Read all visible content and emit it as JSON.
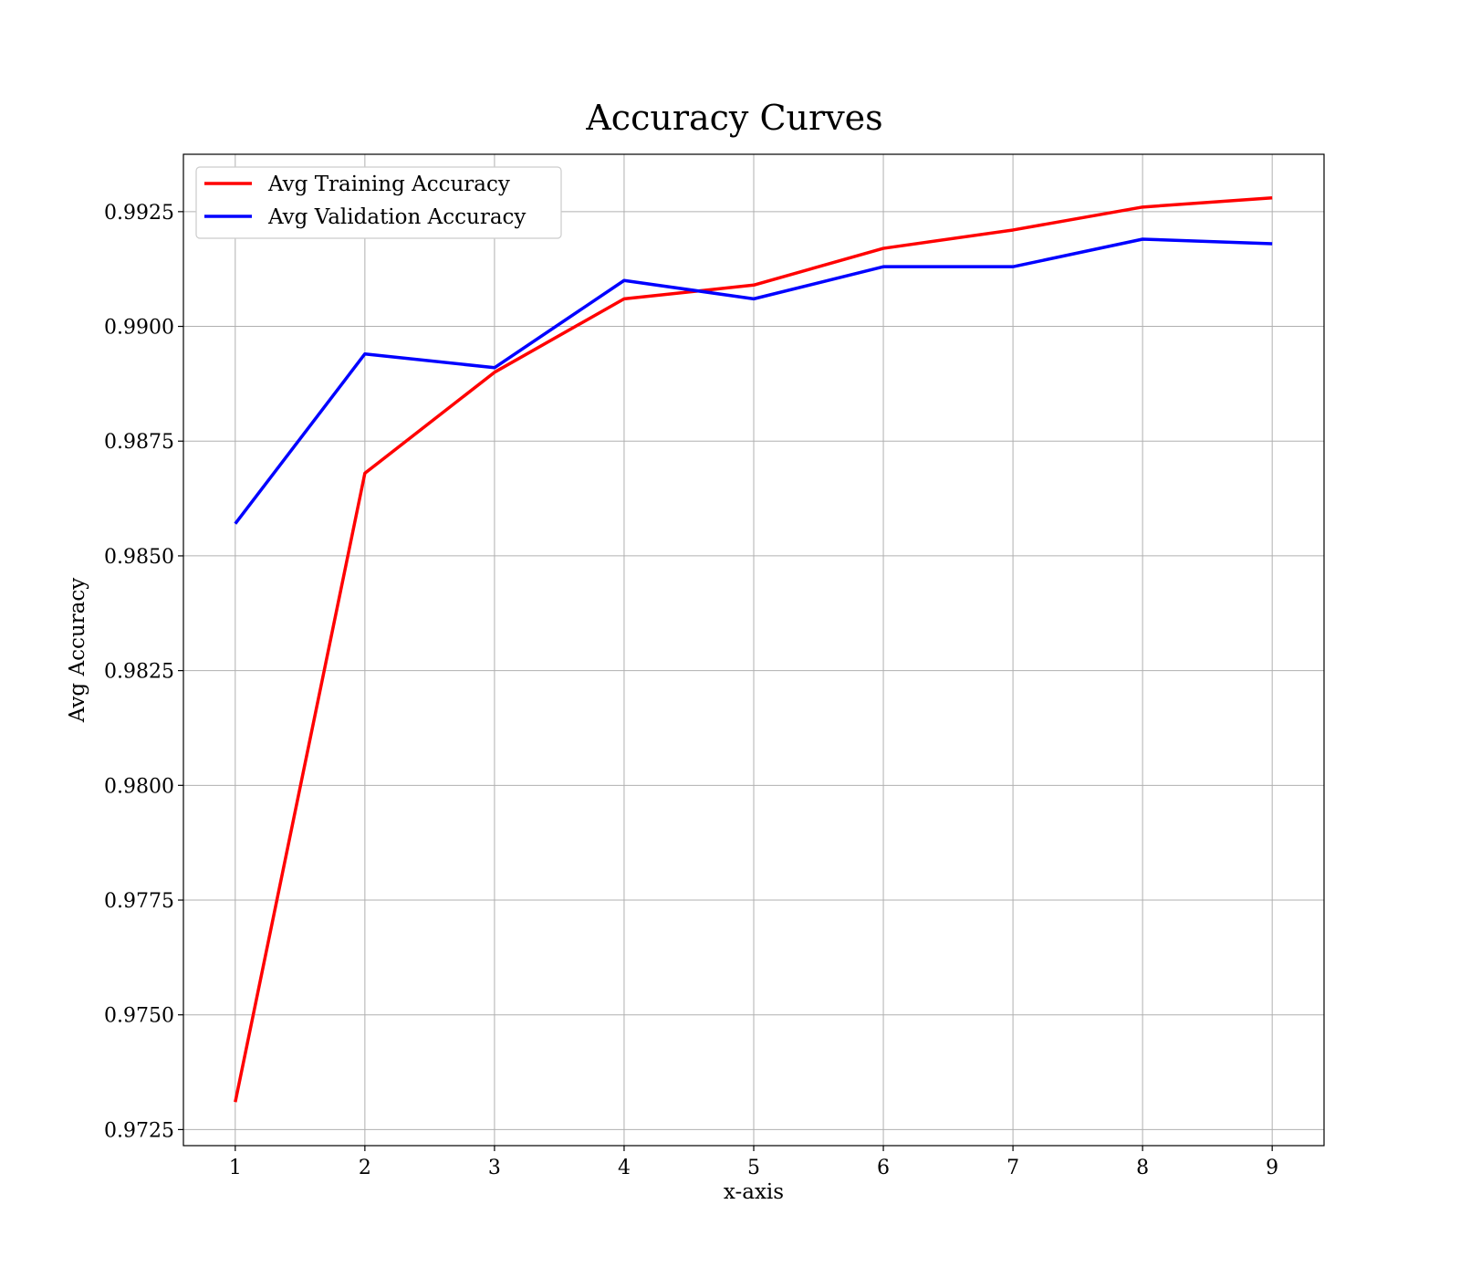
{
  "chart_data": {
    "type": "line",
    "title": "Accuracy Curves",
    "xlabel": "x-axis",
    "ylabel": "Avg Accuracy",
    "x": [
      1,
      2,
      3,
      4,
      5,
      6,
      7,
      8,
      9
    ],
    "xlim": [
      0.6,
      9.4
    ],
    "ylim": [
      0.97215,
      0.99375
    ],
    "xticks": [
      1,
      2,
      3,
      4,
      5,
      6,
      7,
      8,
      9
    ],
    "yticks": [
      0.9725,
      0.975,
      0.9775,
      0.98,
      0.9825,
      0.985,
      0.9875,
      0.99,
      0.9925
    ],
    "ytick_labels": [
      "0.9725",
      "0.9750",
      "0.9775",
      "0.9800",
      "0.9825",
      "0.9850",
      "0.9875",
      "0.9900",
      "0.9925"
    ],
    "grid": true,
    "legend_position": "top-left",
    "series": [
      {
        "name": "Avg Training Accuracy",
        "color": "#ff0000",
        "values": [
          0.9731,
          0.9868,
          0.989,
          0.9906,
          0.9909,
          0.9917,
          0.9921,
          0.9926,
          0.9928
        ]
      },
      {
        "name": "Avg Validation Accuracy",
        "color": "#0000ff",
        "values": [
          0.9857,
          0.9894,
          0.9891,
          0.991,
          0.9906,
          0.9913,
          0.9913,
          0.9919,
          0.9918
        ]
      }
    ]
  }
}
